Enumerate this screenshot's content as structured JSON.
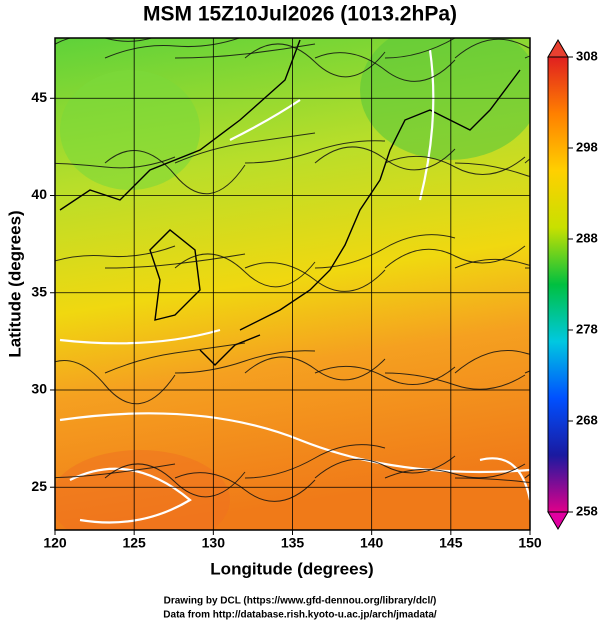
{
  "chart_data": {
    "type": "map",
    "title": "MSM 15Z10Jul2026 (1013.2hPa)",
    "xlabel": "Longitude (degrees)",
    "ylabel": "Latitude  (degrees)",
    "xlim": [
      120,
      150
    ],
    "xticks": [
      120,
      125,
      130,
      135,
      140,
      145,
      150
    ],
    "ylim": [
      22.8,
      48.1
    ],
    "yticks": [
      25,
      30,
      35,
      40,
      45
    ],
    "grid": true,
    "colorbar": {
      "lim": [
        258,
        308
      ],
      "ticks": [
        258,
        268,
        278,
        288,
        298,
        308
      ],
      "colors": [
        "#e0008a",
        "#1a1aa0",
        "#0050ff",
        "#00c8e0",
        "#00c040",
        "#c8e000",
        "#ffd000",
        "#ff8000",
        "#e02020"
      ]
    },
    "credits": [
      "Drawing by DCL (https://www.gfd-dennou.org/library/dcl/)",
      "Data from http://database.rish.kyoto-u.ac.jp/arch/jmadata/"
    ]
  }
}
